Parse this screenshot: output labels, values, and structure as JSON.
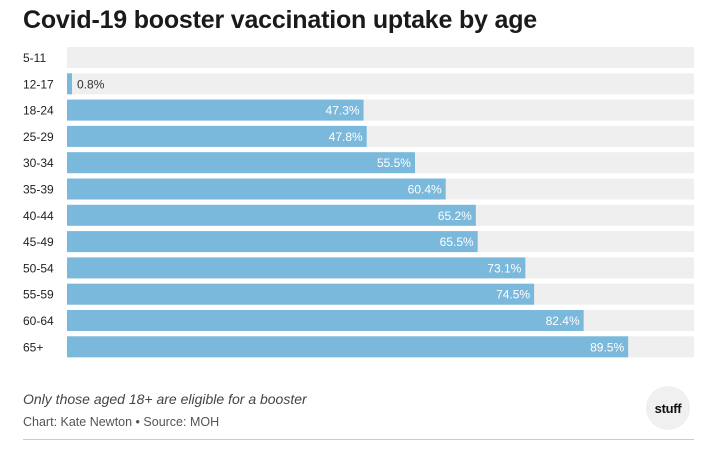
{
  "colors": {
    "bar": "#7ab8dc",
    "track": "#efefef",
    "label_inside": "#ffffff",
    "label_outside": "#333333"
  },
  "chart_data": {
    "type": "bar",
    "orientation": "horizontal",
    "title": "Covid-19 booster vaccination uptake by age",
    "xlabel": "",
    "ylabel": "",
    "xlim": [
      0,
      100
    ],
    "unit": "%",
    "categories": [
      "5-11",
      "12-17",
      "18-24",
      "25-29",
      "30-34",
      "35-39",
      "40-44",
      "45-49",
      "50-54",
      "55-59",
      "60-64",
      "65+"
    ],
    "values": [
      null,
      0.8,
      47.3,
      47.8,
      55.5,
      60.4,
      65.2,
      65.5,
      73.1,
      74.5,
      82.4,
      89.5
    ],
    "value_labels": [
      "",
      "0.8%",
      "47.3%",
      "47.8%",
      "55.5%",
      "60.4%",
      "65.2%",
      "65.5%",
      "73.1%",
      "74.5%",
      "82.4%",
      "89.5%"
    ],
    "note": "Only those aged 18+ are eligible for a booster",
    "credit": "Chart: Kate Newton • Source: MOH"
  },
  "logo": {
    "text": "stuff"
  }
}
